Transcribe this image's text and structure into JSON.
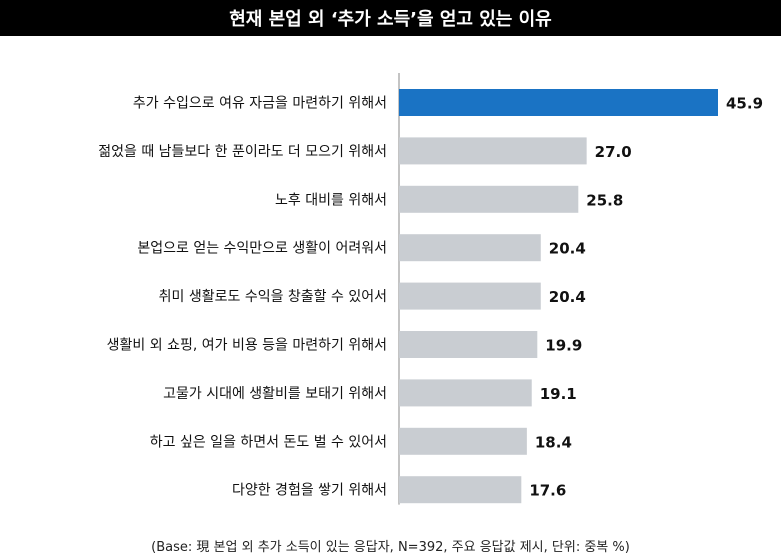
{
  "chart_data": {
    "type": "bar",
    "orientation": "horizontal",
    "title": "현재 본업 외 ‘추가 소득’을 얻고 있는 이유",
    "categories": [
      "추가 수입으로 여유 자금을 마련하기 위해서",
      "젊었을 때 남들보다 한 푼이라도 더 모으기 위해서",
      "노후 대비를 위해서",
      "본업으로 얻는 수익만으로 생활이 어려워서",
      "취미 생활로도 수익을 창출할 수 있어서",
      "생활비 외 쇼핑, 여가 비용 등을 마련하기 위해서",
      "고물가 시대에 생활비를 보태기 위해서",
      "하고 싶은 일을 하면서 돈도 벌 수 있어서",
      "다양한 경험을 쌓기 위해서"
    ],
    "values": [
      45.9,
      27.0,
      25.8,
      20.4,
      20.4,
      19.9,
      19.1,
      18.4,
      17.6
    ],
    "value_labels": [
      "45.9",
      "27.0",
      "25.8",
      "20.4",
      "20.4",
      "19.9",
      "19.1",
      "18.4",
      "17.6"
    ],
    "xlim": [
      0,
      45.9
    ],
    "highlight_color": "#1a73c4",
    "bar_color": "#c9cdd2",
    "axis_line_color": "#8a8a8a",
    "grid": false,
    "legend": false,
    "note": "(Base: 現 본업 외 추가 소득이 있는 응답자, N=392, 주요 응답값 제시, 단위: 중복 %)"
  }
}
